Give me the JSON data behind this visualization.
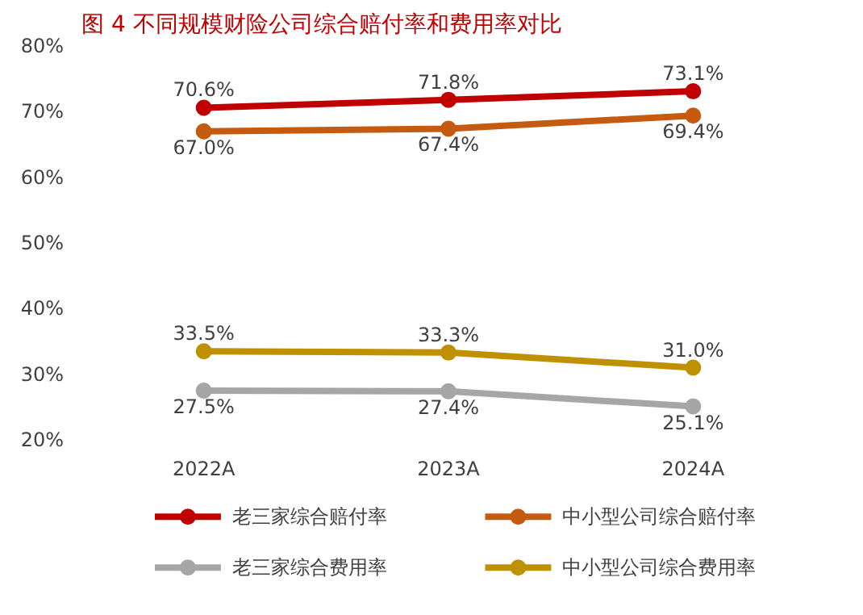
{
  "chart_data": {
    "type": "line",
    "title": "图 4   不同规模财险公司综合赔付率和费用率对比",
    "categories": [
      "2022A",
      "2023A",
      "2024A"
    ],
    "series": [
      {
        "name": "老三家综合赔付率",
        "color": "#c00000",
        "values": [
          70.6,
          71.8,
          73.1
        ],
        "value_labels": [
          "70.6%",
          "71.8%",
          "73.1%"
        ]
      },
      {
        "name": "中小型公司综合赔付率",
        "color": "#c55a11",
        "values": [
          67.0,
          67.4,
          69.4
        ],
        "value_labels": [
          "67.0%",
          "67.4%",
          "69.4%"
        ]
      },
      {
        "name": "老三家综合费用率",
        "color": "#a6a6a6",
        "values": [
          27.5,
          27.4,
          25.1
        ],
        "value_labels": [
          "27.5%",
          "27.4%",
          "25.1%"
        ]
      },
      {
        "name": "中小型公司综合费用率",
        "color": "#bf9000",
        "values": [
          33.5,
          33.3,
          31.0
        ],
        "value_labels": [
          "33.5%",
          "33.3%",
          "31.0%"
        ]
      }
    ],
    "ylim": [
      20,
      80
    ],
    "yticks": [
      {
        "value": 20,
        "label": "20%"
      },
      {
        "value": 30,
        "label": "30%"
      },
      {
        "value": 40,
        "label": "40%"
      },
      {
        "value": 50,
        "label": "50%"
      },
      {
        "value": 60,
        "label": "60%"
      },
      {
        "value": 70,
        "label": "70%"
      },
      {
        "value": 80,
        "label": "80%"
      }
    ],
    "grid": false,
    "legend": "bottom",
    "marker": "circle",
    "line_style": "solid"
  }
}
